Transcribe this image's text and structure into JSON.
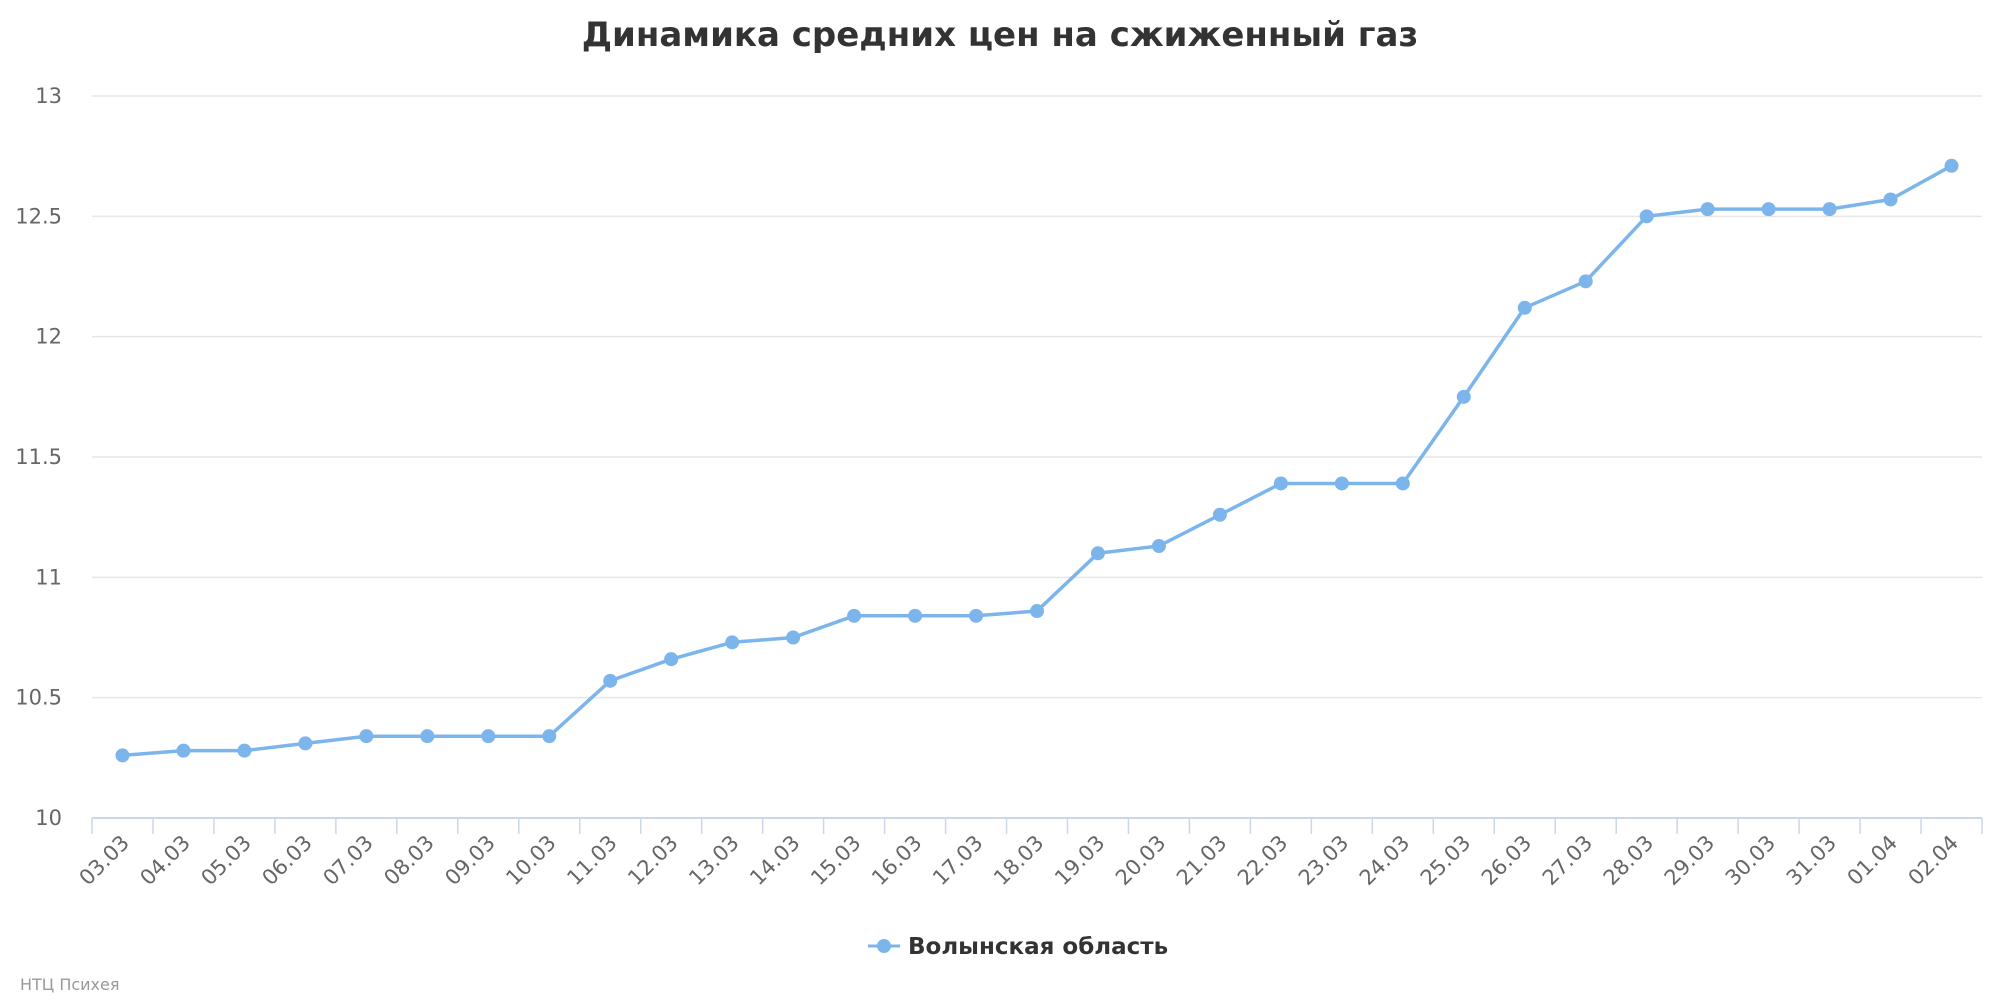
{
  "chart_data": {
    "type": "line",
    "title": "Динамика средних цен на сжиженный газ",
    "xlabel": "",
    "ylabel": "",
    "ylim": [
      10,
      13
    ],
    "yticks": [
      "10",
      "10.5",
      "11",
      "11.5",
      "12",
      "12.5",
      "13"
    ],
    "categories": [
      "03.03",
      "04.03",
      "05.03",
      "06.03",
      "07.03",
      "08.03",
      "09.03",
      "10.03",
      "11.03",
      "12.03",
      "13.03",
      "14.03",
      "15.03",
      "16.03",
      "17.03",
      "18.03",
      "19.03",
      "20.03",
      "21.03",
      "22.03",
      "23.03",
      "24.03",
      "25.03",
      "26.03",
      "27.03",
      "28.03",
      "29.03",
      "30.03",
      "31.03",
      "01.04",
      "02.04"
    ],
    "series": [
      {
        "name": "Волынская область",
        "color": "#7cb5ec",
        "values": [
          10.26,
          10.28,
          10.28,
          10.31,
          10.34,
          10.34,
          10.34,
          10.34,
          10.57,
          10.66,
          10.73,
          10.75,
          10.84,
          10.84,
          10.84,
          10.86,
          11.1,
          11.13,
          11.26,
          11.39,
          11.39,
          11.39,
          11.75,
          12.12,
          12.23,
          12.5,
          12.53,
          12.53,
          12.53,
          12.57,
          12.71
        ]
      }
    ],
    "grid": true,
    "legend_position": "bottom-center"
  },
  "credits": "НТЦ Психея"
}
